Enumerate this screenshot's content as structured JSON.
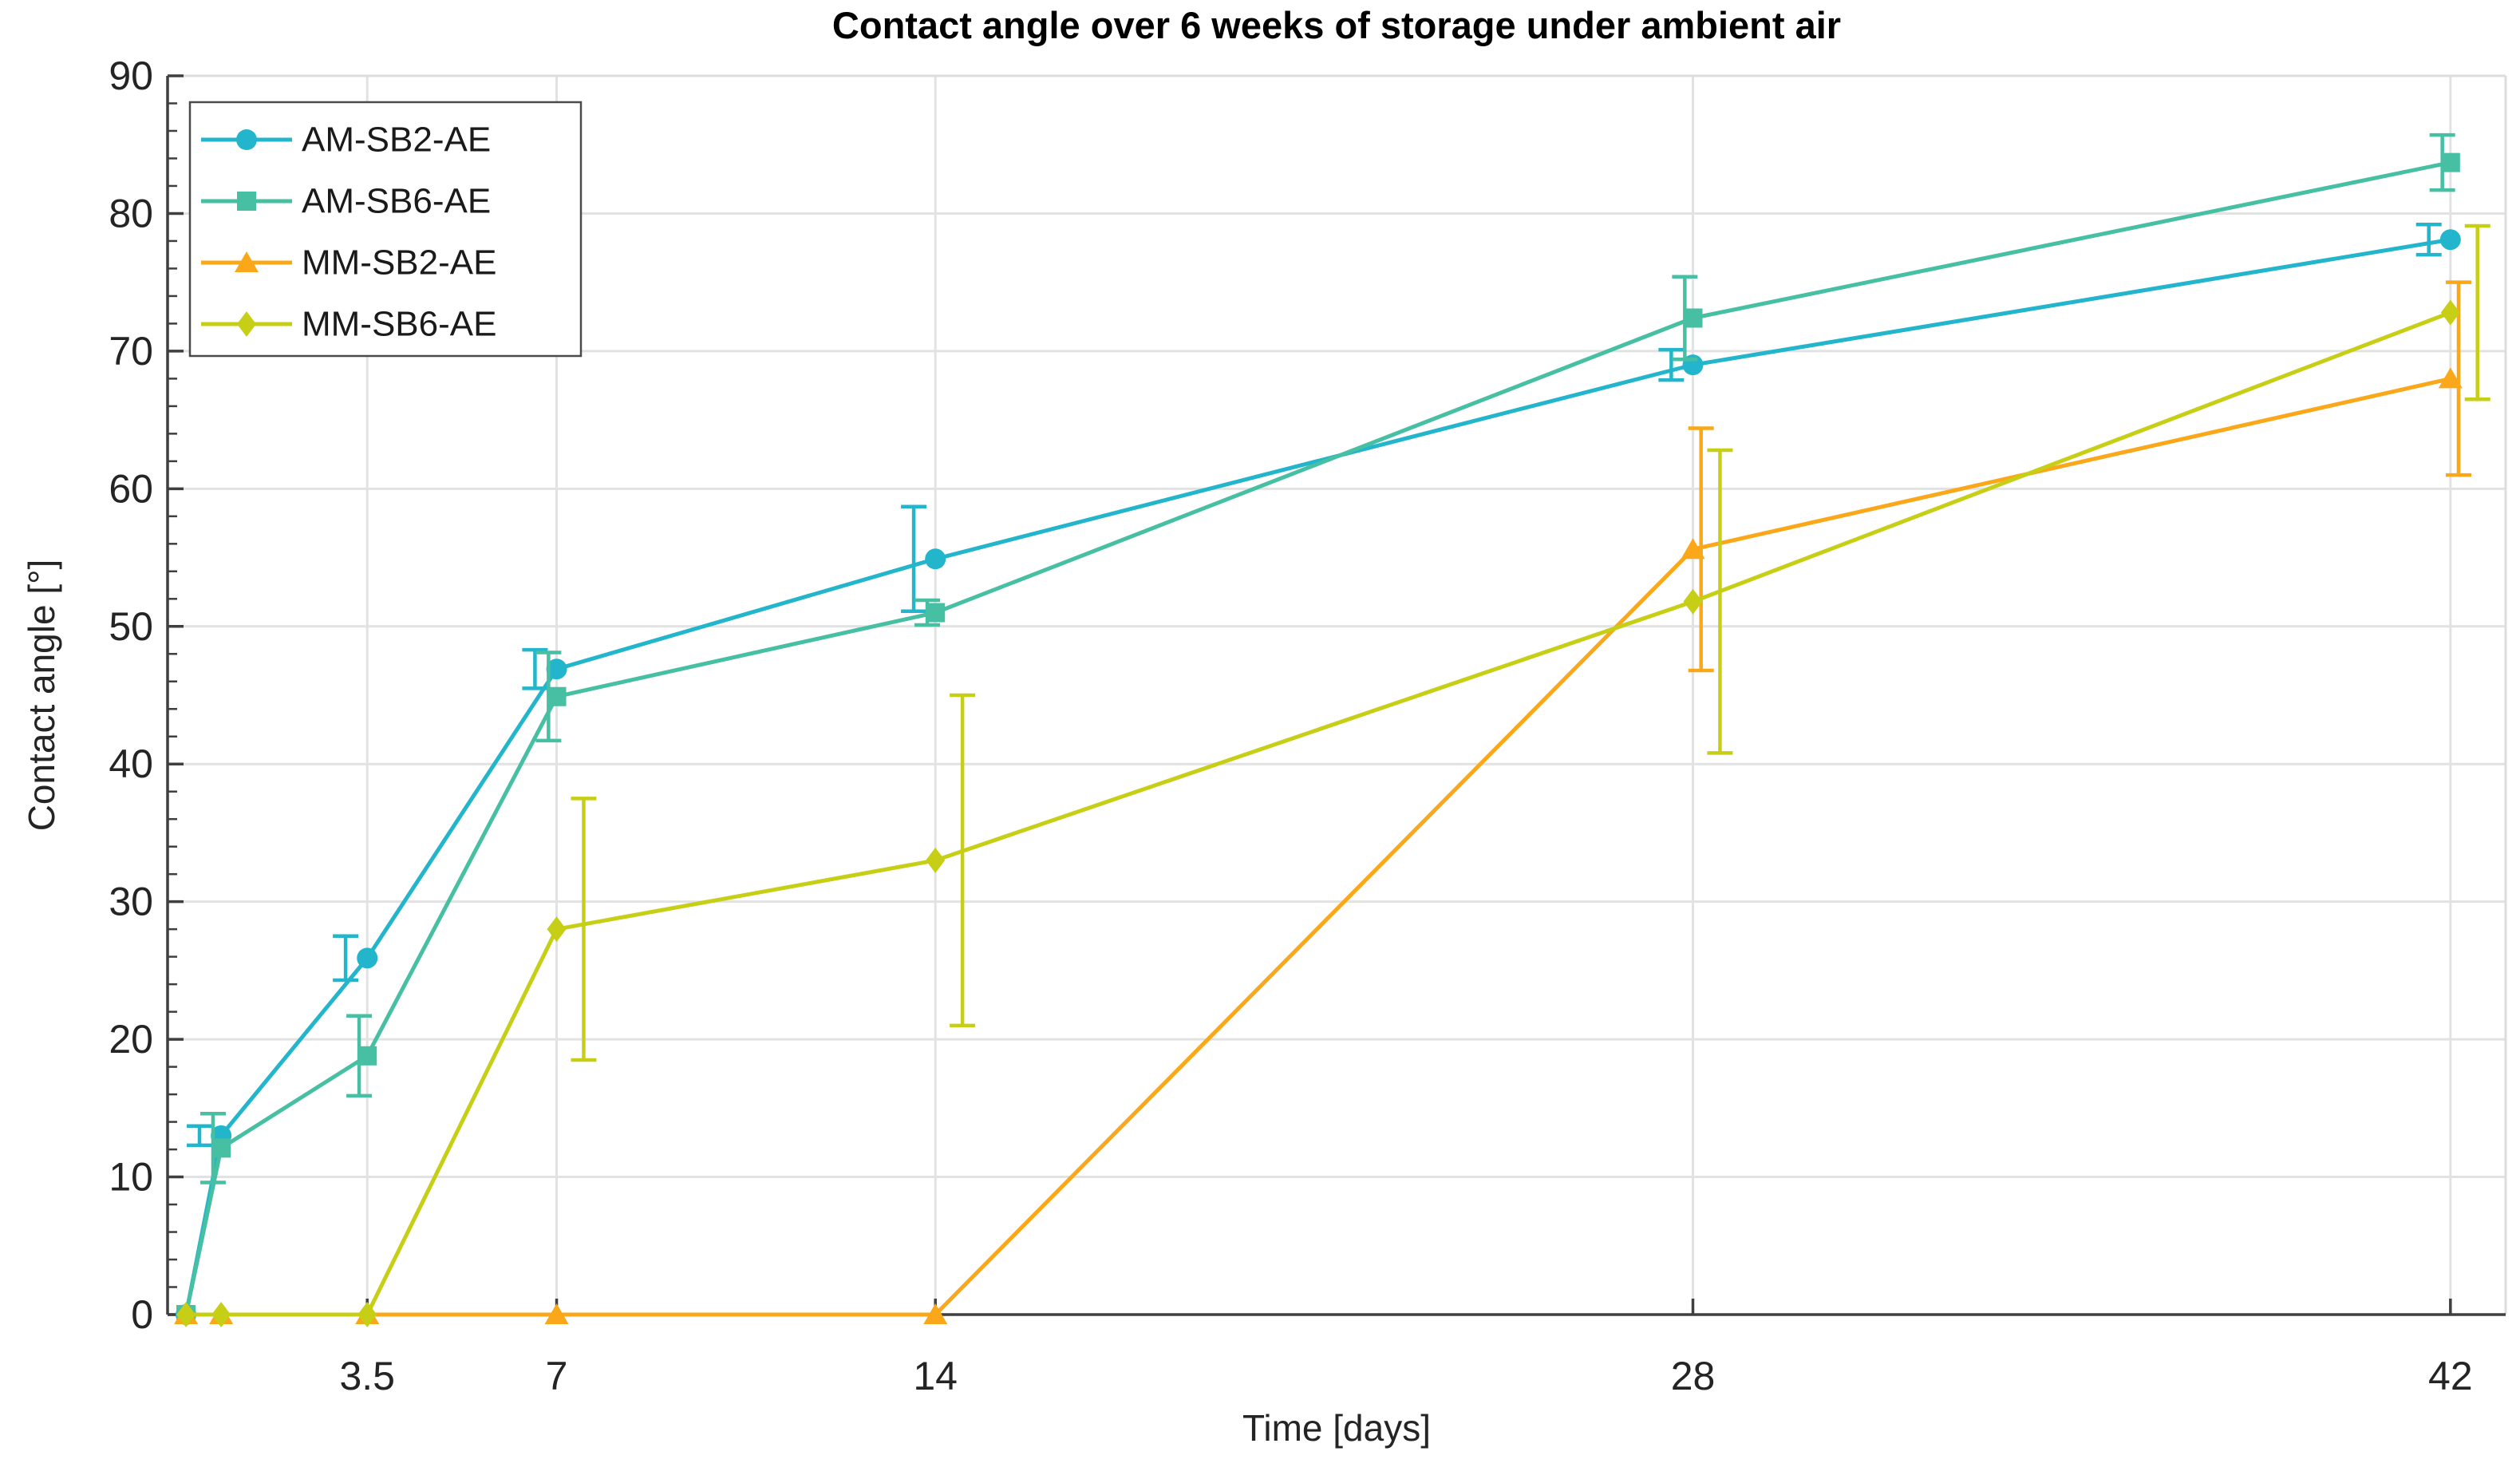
{
  "chart_data": {
    "type": "line",
    "title": "Contact angle over 6 weeks of storage under ambient air",
    "xlabel": "Time [days]",
    "ylabel": "Contact angle [°]",
    "xlim": [
      -0.19,
      43.02
    ],
    "ylim": [
      0,
      90
    ],
    "xticks": [
      {
        "value": 3.5,
        "label": "3.5"
      },
      {
        "value": 7,
        "label": "7"
      },
      {
        "value": 14,
        "label": "14"
      },
      {
        "value": 28,
        "label": "28"
      },
      {
        "value": 42,
        "label": "42"
      }
    ],
    "yticks": [
      0,
      10,
      20,
      30,
      40,
      50,
      60,
      70,
      80,
      90
    ],
    "y_minor_step": 2,
    "grid": true,
    "legend": {
      "position": "top-left",
      "entries": [
        "AM-SB2-AE",
        "AM-SB6-AE",
        "MM-SB2-AE",
        "MM-SB6-AE"
      ]
    },
    "points_format": "[day, contact_angle_deg, error_deg]",
    "series": [
      {
        "name": "AM-SB2-AE",
        "color": "#22B5CB",
        "marker": "circle",
        "err_x_offset_days": -0.4,
        "points": [
          [
            0.15,
            0,
            0
          ],
          [
            0.8,
            13.0,
            0.7
          ],
          [
            3.5,
            25.9,
            1.6
          ],
          [
            7,
            46.9,
            1.4
          ],
          [
            14,
            54.9,
            3.8
          ],
          [
            28,
            69.0,
            1.1
          ],
          [
            42,
            78.1,
            1.1
          ]
        ]
      },
      {
        "name": "AM-SB6-AE",
        "color": "#47BFA3",
        "marker": "square",
        "err_x_offset_days": -0.15,
        "points": [
          [
            0.15,
            0,
            0
          ],
          [
            0.8,
            12.1,
            2.5
          ],
          [
            3.5,
            18.8,
            2.9
          ],
          [
            7,
            44.9,
            3.2
          ],
          [
            14,
            51.0,
            0.9
          ],
          [
            28,
            72.4,
            3.0
          ],
          [
            42,
            83.7,
            2.0
          ]
        ]
      },
      {
        "name": "MM-SB2-AE",
        "color": "#FAA819",
        "marker": "triangle",
        "err_x_offset_days": 0.15,
        "points": [
          [
            0.15,
            0,
            0
          ],
          [
            0.8,
            0,
            0
          ],
          [
            3.5,
            0,
            0
          ],
          [
            7,
            0,
            0
          ],
          [
            14,
            0,
            0
          ],
          [
            28,
            55.6,
            8.8
          ],
          [
            42,
            68.0,
            7.0
          ]
        ]
      },
      {
        "name": "MM-SB6-AE",
        "color": "#C6CF16",
        "marker": "diamond",
        "err_x_offset_days": 0.5,
        "points": [
          [
            0.15,
            0,
            0
          ],
          [
            0.8,
            0,
            0
          ],
          [
            3.5,
            0,
            0
          ],
          [
            7,
            28.0,
            9.5
          ],
          [
            14,
            33.0,
            12.0
          ],
          [
            28,
            51.8,
            11.0
          ],
          [
            42,
            72.8,
            6.3
          ]
        ]
      }
    ]
  },
  "style_colors": {
    "grid": "#E2E2E2",
    "box_light": "#DCDCDC",
    "axis_dark": "#3F3F3F",
    "tick_label": "#242424",
    "legend_border": "#4A4A4A",
    "legend_background": "#FFFFFF"
  }
}
